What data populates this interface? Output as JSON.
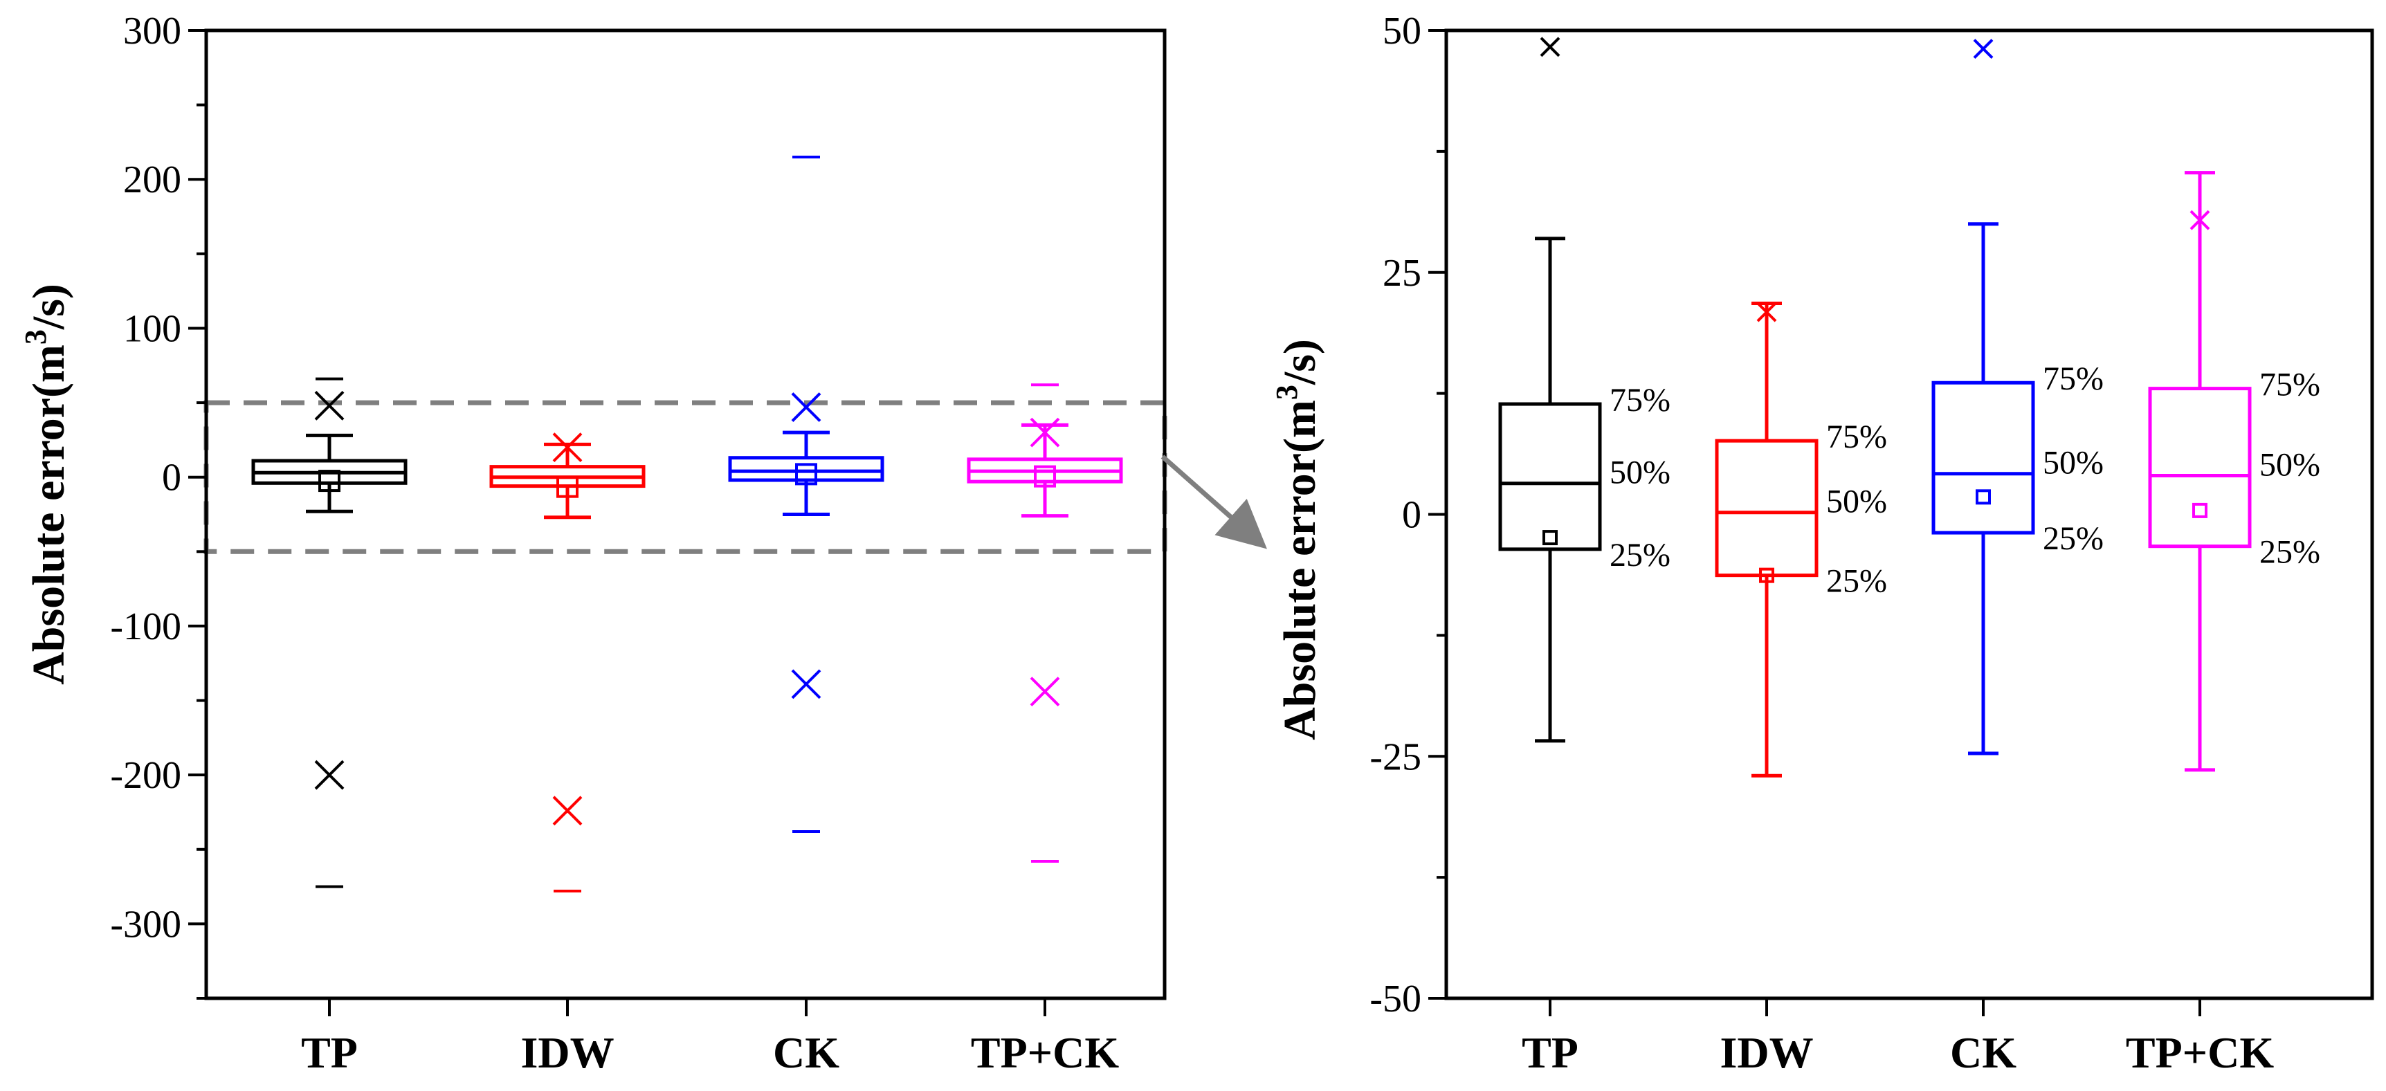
{
  "chart_data": [
    {
      "type": "box",
      "panel": "left",
      "ylabel_main": "Absolute error(m",
      "ylabel_sup": "3",
      "ylabel_tail": "/s)",
      "ylim": [
        -350,
        300
      ],
      "yticks": [
        -300,
        -200,
        -100,
        0,
        100,
        200,
        300
      ],
      "ytick_labels": [
        "-300",
        "-200",
        "-100",
        "0",
        "100",
        "200",
        "300"
      ],
      "zoom_region": [
        -50,
        50
      ],
      "categories": [
        "TP",
        "IDW",
        "CK",
        "TP+CK"
      ],
      "series": [
        {
          "name": "TP",
          "color": "#000000",
          "q1": -4,
          "median": 3,
          "q3": 11,
          "whisker_low": -23,
          "whisker_high": 28,
          "mean": -2.5,
          "x_high": 48,
          "x_low": -200,
          "max": 66,
          "min": -275
        },
        {
          "name": "IDW",
          "color": "#ff0000",
          "q1": -6,
          "median": 0,
          "q3": 7,
          "whisker_low": -27,
          "whisker_high": 22,
          "mean": -6.5,
          "x_high": 20,
          "x_low": -224,
          "max": 22,
          "min": -278
        },
        {
          "name": "CK",
          "color": "#0000ff",
          "q1": -2,
          "median": 4,
          "q3": 13,
          "whisker_low": -25,
          "whisker_high": 30,
          "mean": 2,
          "x_high": 47,
          "x_low": -139,
          "max": 215,
          "min": -238
        },
        {
          "name": "TP+CK",
          "color": "#ff00ff",
          "q1": -3,
          "median": 4,
          "q3": 12,
          "whisker_low": -26,
          "whisker_high": 35,
          "mean": 0.5,
          "x_high": 30,
          "x_low": -144,
          "max": 62,
          "min": -258
        }
      ]
    },
    {
      "type": "box",
      "panel": "right",
      "ylabel_main": "Absolute error(m",
      "ylabel_sup": "3",
      "ylabel_tail": "/s)",
      "ylim": [
        -50,
        50
      ],
      "yticks": [
        -50,
        -25,
        0,
        25,
        50
      ],
      "ytick_labels": [
        "-50",
        "-25",
        "0",
        "25",
        "50"
      ],
      "categories": [
        "TP",
        "IDW",
        "CK",
        "TP+CK"
      ],
      "percentile_labels": [
        "75%",
        "50%",
        "25%"
      ],
      "series": [
        {
          "name": "TP",
          "color": "#000000",
          "q1": -3.6,
          "median": 3.2,
          "q3": 11.4,
          "whisker_low": -23.4,
          "whisker_high": 28.5,
          "mean": -2.4,
          "x_high": 48.3
        },
        {
          "name": "IDW",
          "color": "#ff0000",
          "q1": -6.3,
          "median": 0.2,
          "q3": 7.6,
          "whisker_low": -27,
          "whisker_high": 21.8,
          "mean": -6.3,
          "x_high": 20.9
        },
        {
          "name": "CK",
          "color": "#0000ff",
          "q1": -1.9,
          "median": 4.2,
          "q3": 13.6,
          "whisker_low": -24.7,
          "whisker_high": 30,
          "mean": 1.8,
          "x_high": 48.1
        },
        {
          "name": "TP+CK",
          "color": "#ff00ff",
          "q1": -3.3,
          "median": 4,
          "q3": 13,
          "whisker_low": -26.4,
          "whisker_high": 35.3,
          "mean": 0.4,
          "x_high": 30.4
        }
      ]
    }
  ]
}
